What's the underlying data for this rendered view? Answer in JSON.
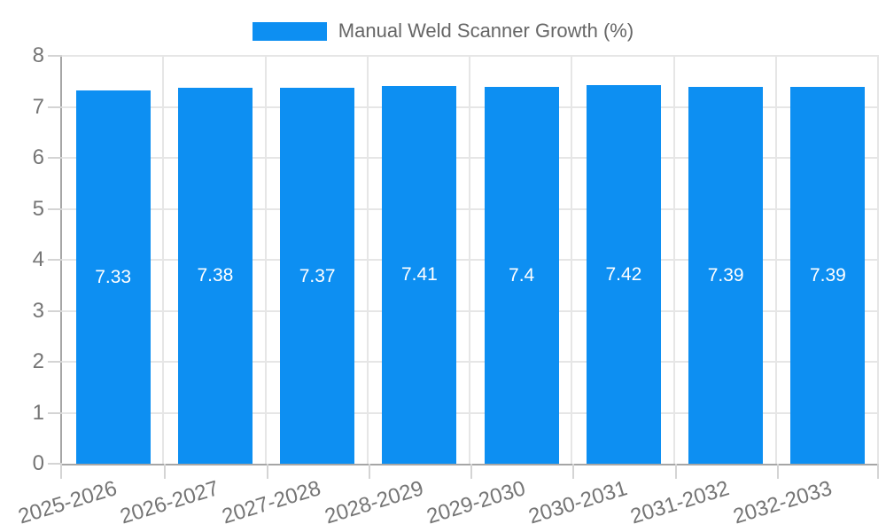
{
  "legend": {
    "label": "Manual Weld Scanner Growth (%)"
  },
  "colors": {
    "bar": "#0d8ff2",
    "axis": "#a6a6a6",
    "grid": "#e6e6e6",
    "tick": "#d4d4d4",
    "axis_text": "#757575",
    "legend_text": "#666666",
    "value_text": "#ffffff",
    "background": "#ffffff"
  },
  "chart_data": {
    "type": "bar",
    "title": "Manual Weld Scanner Growth (%)",
    "series_name": "Manual Weld Scanner Growth (%)",
    "categories": [
      "2025-2026",
      "2026-2027",
      "2027-2028",
      "2028-2029",
      "2029-2030",
      "2030-2031",
      "2031-2032",
      "2032-2033"
    ],
    "values": [
      7.33,
      7.38,
      7.37,
      7.41,
      7.4,
      7.42,
      7.39,
      7.39
    ],
    "value_labels": [
      "7.33",
      "7.38",
      "7.37",
      "7.41",
      "7.4",
      "7.42",
      "7.39",
      "7.39"
    ],
    "xlabel": "",
    "ylabel": "",
    "ylim": [
      0,
      8
    ],
    "ytick_step": 1,
    "yticks": [
      0,
      1,
      2,
      3,
      4,
      5,
      6,
      7,
      8
    ],
    "grid": true,
    "legend_position": "top",
    "bar_color": "#0d8ff2"
  }
}
